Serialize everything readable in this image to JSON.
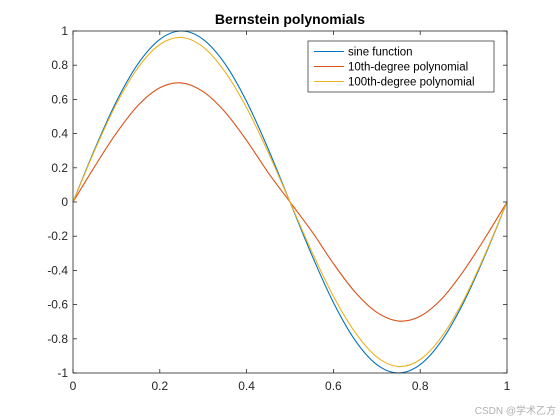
{
  "chart_data": {
    "type": "line",
    "title": "Bernstein polynomials",
    "xlabel": "",
    "ylabel": "",
    "xlim": [
      0,
      1
    ],
    "ylim": [
      -1,
      1
    ],
    "x_ticks": [
      0,
      0.2,
      0.4,
      0.6,
      0.8,
      1
    ],
    "x_tick_labels": [
      "0",
      "0.2",
      "0.4",
      "0.6",
      "0.8",
      "1"
    ],
    "y_ticks": [
      -1,
      -0.8,
      -0.6,
      -0.4,
      -0.2,
      0,
      0.2,
      0.4,
      0.6,
      0.8,
      1
    ],
    "y_tick_labels": [
      "-1",
      "-0.8",
      "-0.6",
      "-0.4",
      "-0.2",
      "0",
      "0.2",
      "0.4",
      "0.6",
      "0.8",
      "1"
    ],
    "grid": false,
    "legend_position": "top-right",
    "series": [
      {
        "name": "sine function",
        "color": "#0072BD",
        "x": [
          0,
          0.05,
          0.1,
          0.15,
          0.2,
          0.25,
          0.3,
          0.35,
          0.4,
          0.45,
          0.5,
          0.55,
          0.6,
          0.65,
          0.7,
          0.75,
          0.8,
          0.85,
          0.9,
          0.95,
          1
        ],
        "y": [
          0,
          0.309,
          0.588,
          0.809,
          0.951,
          1,
          0.951,
          0.809,
          0.588,
          0.309,
          0,
          -0.309,
          -0.588,
          -0.809,
          -0.951,
          -1,
          -0.951,
          -0.809,
          -0.588,
          -0.309,
          0
        ]
      },
      {
        "name": "10th-degree polynomial",
        "color": "#D95319",
        "x": [
          0,
          0.05,
          0.1,
          0.15,
          0.2,
          0.25,
          0.3,
          0.35,
          0.4,
          0.45,
          0.5,
          0.55,
          0.6,
          0.65,
          0.7,
          0.75,
          0.8,
          0.85,
          0.9,
          0.95,
          1
        ],
        "y": [
          0,
          0.208,
          0.403,
          0.565,
          0.668,
          0.696,
          0.645,
          0.527,
          0.36,
          0.171,
          0,
          -0.171,
          -0.36,
          -0.527,
          -0.645,
          -0.696,
          -0.668,
          -0.565,
          -0.403,
          -0.208,
          0
        ]
      },
      {
        "name": "100th-degree polynomial",
        "color": "#EDB120",
        "x": [
          0,
          0.05,
          0.1,
          0.15,
          0.2,
          0.25,
          0.3,
          0.35,
          0.4,
          0.45,
          0.5,
          0.55,
          0.6,
          0.65,
          0.7,
          0.75,
          0.8,
          0.85,
          0.9,
          0.95,
          1
        ],
        "y": [
          0,
          0.302,
          0.574,
          0.786,
          0.921,
          0.962,
          0.906,
          0.762,
          0.551,
          0.289,
          0,
          -0.289,
          -0.551,
          -0.762,
          -0.906,
          -0.962,
          -0.921,
          -0.786,
          -0.574,
          -0.302,
          0
        ]
      }
    ]
  },
  "watermark": "CSDN @学术乙方"
}
